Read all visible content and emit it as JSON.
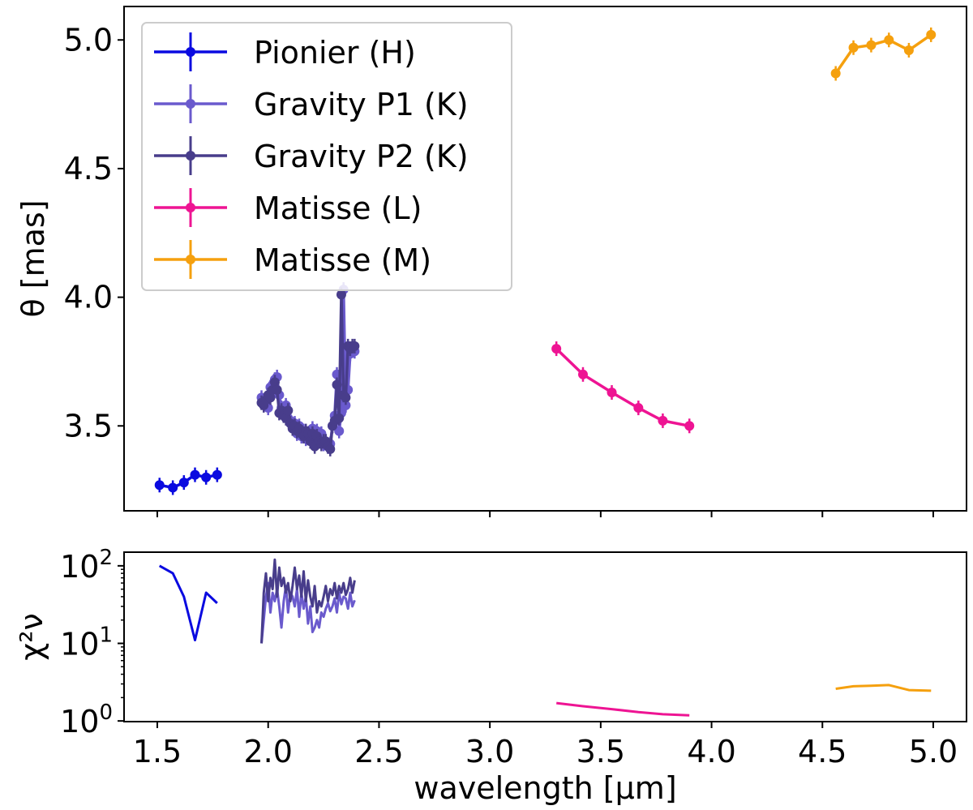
{
  "chart_data": [
    {
      "type": "line",
      "panel": "top",
      "ylabel": "θ [mas]",
      "xlim": [
        1.35,
        5.15
      ],
      "ylim": [
        3.17,
        5.13
      ],
      "xticks": [
        1.5,
        2.0,
        2.5,
        3.0,
        3.5,
        4.0,
        4.5,
        5.0
      ],
      "yticks": [
        3.5,
        4.0,
        4.5,
        5.0
      ],
      "ytick_labels": [
        "3.5",
        "4.0",
        "4.5",
        "5.0"
      ],
      "legend_position": "top-left",
      "series": [
        {
          "name": "Pionier (H)",
          "color": "#0a0ae0",
          "x": [
            1.51,
            1.57,
            1.62,
            1.67,
            1.72,
            1.77
          ],
          "y": [
            3.27,
            3.26,
            3.28,
            3.31,
            3.3,
            3.31
          ]
        },
        {
          "name": "Gravity P1 (K)",
          "color": "#6a5acd",
          "x": [
            1.97,
            1.99,
            2.0,
            2.01,
            2.02,
            2.03,
            2.04,
            2.05,
            2.06,
            2.07,
            2.08,
            2.09,
            2.1,
            2.11,
            2.12,
            2.13,
            2.14,
            2.15,
            2.16,
            2.17,
            2.18,
            2.19,
            2.2,
            2.21,
            2.22,
            2.23,
            2.24,
            2.25,
            2.26,
            2.27,
            2.28,
            2.29,
            2.3,
            2.31,
            2.32,
            2.33,
            2.34,
            2.35,
            2.36,
            2.37,
            2.38,
            2.39
          ],
          "y": [
            3.61,
            3.6,
            3.57,
            3.65,
            3.66,
            3.68,
            3.69,
            3.62,
            3.57,
            3.54,
            3.58,
            3.53,
            3.52,
            3.49,
            3.51,
            3.47,
            3.5,
            3.46,
            3.48,
            3.45,
            3.47,
            3.46,
            3.49,
            3.44,
            3.48,
            3.45,
            3.47,
            3.43,
            3.44,
            3.42,
            3.43,
            3.5,
            3.54,
            3.7,
            3.48,
            3.55,
            4.03,
            3.58,
            3.64,
            3.78,
            3.8,
            3.79
          ]
        },
        {
          "name": "Gravity P2 (K)",
          "color": "#483d8b",
          "x": [
            1.97,
            1.98,
            1.99,
            2.0,
            2.01,
            2.02,
            2.03,
            2.04,
            2.05,
            2.06,
            2.07,
            2.08,
            2.09,
            2.1,
            2.11,
            2.12,
            2.13,
            2.14,
            2.15,
            2.16,
            2.17,
            2.18,
            2.19,
            2.2,
            2.21,
            2.22,
            2.23,
            2.24,
            2.25,
            2.26,
            2.27,
            2.28,
            2.29,
            2.3,
            2.31,
            2.32,
            2.33,
            2.34,
            2.35,
            2.36,
            2.37,
            2.38,
            2.39
          ],
          "y": [
            3.59,
            3.58,
            3.6,
            3.62,
            3.61,
            3.64,
            3.67,
            3.64,
            3.55,
            3.56,
            3.54,
            3.53,
            3.56,
            3.51,
            3.49,
            3.5,
            3.48,
            3.49,
            3.47,
            3.46,
            3.48,
            3.47,
            3.44,
            3.47,
            3.42,
            3.46,
            3.44,
            3.43,
            3.44,
            3.44,
            3.42,
            3.41,
            3.5,
            3.52,
            3.66,
            3.53,
            4.01,
            3.62,
            3.61,
            3.81,
            3.8,
            3.81,
            3.81
          ]
        },
        {
          "name": "Matisse (L)",
          "color": "#ee1493",
          "x": [
            3.3,
            3.42,
            3.55,
            3.67,
            3.78,
            3.9
          ],
          "y": [
            3.8,
            3.7,
            3.63,
            3.57,
            3.52,
            3.5
          ]
        },
        {
          "name": "Matisse (M)",
          "color": "#f5a00e",
          "x": [
            4.56,
            4.64,
            4.72,
            4.8,
            4.89,
            4.99
          ],
          "y": [
            4.87,
            4.97,
            4.98,
            5.0,
            4.96,
            5.02
          ]
        }
      ]
    },
    {
      "type": "line",
      "panel": "bottom",
      "xlabel": "wavelength [μm]",
      "ylabel": "χ²ν",
      "yscale": "log",
      "xlim": [
        1.35,
        5.15
      ],
      "ylim": [
        0.98,
        150
      ],
      "xticks": [
        1.5,
        2.0,
        2.5,
        3.0,
        3.5,
        4.0,
        4.5,
        5.0
      ],
      "xtick_labels": [
        "1.5",
        "2.0",
        "2.5",
        "3.0",
        "3.5",
        "4.0",
        "4.5",
        "5.0"
      ],
      "yticks": [
        1,
        10,
        100
      ],
      "ytick_bases": [
        "10",
        "10",
        "10"
      ],
      "ytick_exponents": [
        "0",
        "1",
        "2"
      ],
      "series": [
        {
          "name": "Pionier (H)",
          "color": "#0a0ae0",
          "x": [
            1.51,
            1.57,
            1.62,
            1.67,
            1.72,
            1.77
          ],
          "y": [
            100,
            80,
            40,
            11,
            45,
            33
          ]
        },
        {
          "name": "Gravity P1 (K)",
          "color": "#6a5acd",
          "x": [
            1.97,
            1.99,
            2.0,
            2.01,
            2.02,
            2.03,
            2.04,
            2.05,
            2.06,
            2.07,
            2.08,
            2.09,
            2.1,
            2.11,
            2.12,
            2.13,
            2.14,
            2.15,
            2.16,
            2.17,
            2.18,
            2.19,
            2.2,
            2.21,
            2.22,
            2.23,
            2.24,
            2.25,
            2.26,
            2.27,
            2.28,
            2.29,
            2.3,
            2.31,
            2.32,
            2.33,
            2.34,
            2.35,
            2.36,
            2.37,
            2.38,
            2.39
          ],
          "y": [
            10,
            40,
            60,
            25,
            45,
            35,
            50,
            30,
            16,
            35,
            55,
            25,
            45,
            40,
            30,
            50,
            22,
            45,
            28,
            40,
            18,
            30,
            14,
            16,
            20,
            16,
            25,
            22,
            28,
            33,
            26,
            30,
            38,
            25,
            45,
            32,
            40,
            38,
            28,
            45,
            30,
            36
          ]
        },
        {
          "name": "Gravity P2 (K)",
          "color": "#483d8b",
          "x": [
            1.97,
            1.98,
            1.99,
            2.0,
            2.01,
            2.02,
            2.03,
            2.04,
            2.05,
            2.06,
            2.07,
            2.08,
            2.09,
            2.1,
            2.11,
            2.12,
            2.13,
            2.14,
            2.15,
            2.16,
            2.17,
            2.18,
            2.19,
            2.2,
            2.21,
            2.22,
            2.23,
            2.24,
            2.25,
            2.26,
            2.27,
            2.28,
            2.29,
            2.3,
            2.31,
            2.32,
            2.33,
            2.34,
            2.35,
            2.36,
            2.37,
            2.38,
            2.39
          ],
          "y": [
            10,
            45,
            80,
            35,
            70,
            50,
            120,
            40,
            95,
            55,
            70,
            45,
            60,
            35,
            55,
            95,
            50,
            75,
            40,
            85,
            35,
            65,
            40,
            30,
            55,
            25,
            35,
            30,
            40,
            55,
            35,
            50,
            42,
            60,
            38,
            55,
            45,
            60,
            42,
            50,
            70,
            45,
            65
          ]
        },
        {
          "name": "Matisse (L)",
          "color": "#ee1493",
          "x": [
            3.3,
            3.42,
            3.55,
            3.67,
            3.78,
            3.9
          ],
          "y": [
            1.7,
            1.55,
            1.42,
            1.3,
            1.22,
            1.18
          ]
        },
        {
          "name": "Matisse (M)",
          "color": "#f5a00e",
          "x": [
            4.56,
            4.64,
            4.72,
            4.8,
            4.89,
            4.99
          ],
          "y": [
            2.6,
            2.8,
            2.85,
            2.9,
            2.5,
            2.45
          ]
        }
      ]
    }
  ]
}
